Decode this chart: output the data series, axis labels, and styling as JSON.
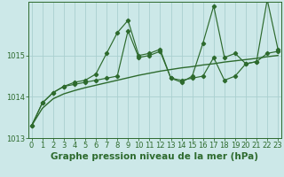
{
  "title": "Graphe pression niveau de la mer (hPa)",
  "bg_color": "#cce8e8",
  "grid_color": "#aacfcf",
  "line_color": "#2d6a2d",
  "hours": [
    0,
    1,
    2,
    3,
    4,
    5,
    6,
    7,
    8,
    9,
    10,
    11,
    12,
    13,
    14,
    15,
    16,
    17,
    18,
    19,
    20,
    21,
    22,
    23
  ],
  "series_main": [
    1013.3,
    1013.85,
    1014.1,
    1014.25,
    1014.3,
    1014.35,
    1014.4,
    1014.45,
    1014.5,
    1015.6,
    1014.95,
    1015.0,
    1015.1,
    1014.45,
    1014.4,
    1014.45,
    1014.5,
    1014.95,
    1014.4,
    1014.5,
    1014.8,
    1014.85,
    1015.05,
    1015.1
  ],
  "series_high": [
    1013.3,
    1013.85,
    1014.1,
    1014.25,
    1014.35,
    1014.4,
    1014.55,
    1015.05,
    1015.55,
    1015.85,
    1015.0,
    1015.05,
    1015.15,
    1014.45,
    1014.35,
    1014.5,
    1015.3,
    1016.2,
    1014.95,
    1015.05,
    1014.8,
    1014.85,
    1016.35,
    1015.15
  ],
  "series_trend": [
    1013.3,
    1013.72,
    1013.95,
    1014.07,
    1014.15,
    1014.22,
    1014.28,
    1014.34,
    1014.4,
    1014.46,
    1014.52,
    1014.57,
    1014.62,
    1014.66,
    1014.7,
    1014.73,
    1014.77,
    1014.8,
    1014.84,
    1014.87,
    1014.9,
    1014.93,
    1014.97,
    1015.0
  ],
  "ylim": [
    1013.0,
    1016.3
  ],
  "yticks": [
    1013,
    1014,
    1015
  ],
  "xlim": [
    -0.3,
    23.3
  ],
  "xticks": [
    0,
    1,
    2,
    3,
    4,
    5,
    6,
    7,
    8,
    9,
    10,
    11,
    12,
    13,
    14,
    15,
    16,
    17,
    18,
    19,
    20,
    21,
    22,
    23
  ],
  "tick_fontsize": 6,
  "label_fontsize": 7.5
}
